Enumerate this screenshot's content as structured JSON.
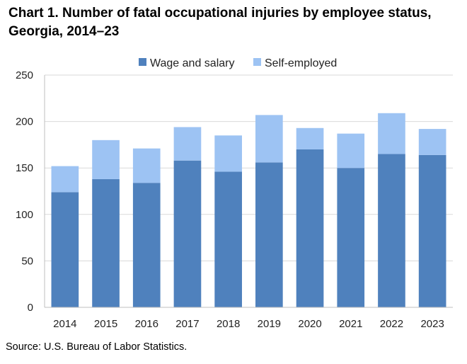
{
  "chart_data": {
    "type": "bar",
    "stacked": true,
    "title_line1": "Chart 1. Number of fatal occupational injuries by employee status,",
    "title_line2": "Georgia, 2014–23",
    "categories": [
      "2014",
      "2015",
      "2016",
      "2017",
      "2018",
      "2019",
      "2020",
      "2021",
      "2022",
      "2023"
    ],
    "series": [
      {
        "name": "Wage and salary",
        "color": "#4f81bd",
        "values": [
          124,
          138,
          134,
          158,
          146,
          156,
          170,
          150,
          165,
          164
        ]
      },
      {
        "name": "Self-employed",
        "color": "#9dc3f3",
        "values": [
          28,
          42,
          37,
          36,
          39,
          51,
          23,
          37,
          44,
          28
        ]
      }
    ],
    "ylim": [
      0,
      250
    ],
    "yticks": [
      "0",
      "50",
      "100",
      "150",
      "200",
      "250"
    ],
    "grid": true,
    "legend_position": "top-center",
    "source": "Source: U.S. Bureau of Labor Statistics."
  }
}
